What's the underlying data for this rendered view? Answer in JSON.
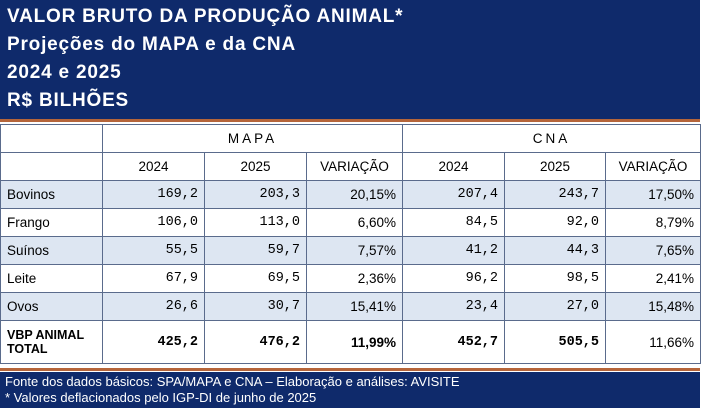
{
  "title": {
    "line1": "VALOR BRUTO DA PRODUÇÃO ANIMAL*",
    "line2": "Projeções do MAPA e da CNA",
    "line3": "2024 e 2025",
    "line4": "R$ BILHÕES"
  },
  "groups": [
    "MAPA",
    "CNA"
  ],
  "columns": [
    "2024",
    "2025",
    "VARIAÇÃO",
    "2024",
    "2025",
    "VARIAÇÃO"
  ],
  "rows": [
    {
      "label": "Bovinos",
      "values": [
        "169,2",
        "203,3",
        "20,15%",
        "207,4",
        "243,7",
        "17,50%"
      ]
    },
    {
      "label": "Frango",
      "values": [
        "106,0",
        "113,0",
        "6,60%",
        "84,5",
        "92,0",
        "8,79%"
      ]
    },
    {
      "label": "Suínos",
      "values": [
        "55,5",
        "59,7",
        "7,57%",
        "41,2",
        "44,3",
        "7,65%"
      ]
    },
    {
      "label": "Leite",
      "values": [
        "67,9",
        "69,5",
        "2,36%",
        "96,2",
        "98,5",
        "2,41%"
      ]
    },
    {
      "label": "Ovos",
      "values": [
        "26,6",
        "30,7",
        "15,41%",
        "23,4",
        "27,0",
        "15,48%"
      ]
    }
  ],
  "total": {
    "label_line1": "VBP ANIMAL",
    "label_line2": "TOTAL",
    "values": [
      "425,2",
      "476,2",
      "11,99%",
      "452,7",
      "505,5",
      "11,66%"
    ]
  },
  "footer": {
    "line1": "Fonte dos dados básicos: SPA/MAPA e CNA – Elaboração e análises: AVISITE",
    "line2": "* Valores deflacionados pelo IGP-DI de junho de 2025"
  },
  "colors": {
    "header": "#0f2a6b",
    "accent": "#b5653a",
    "row_alt": "#dde6f2"
  }
}
